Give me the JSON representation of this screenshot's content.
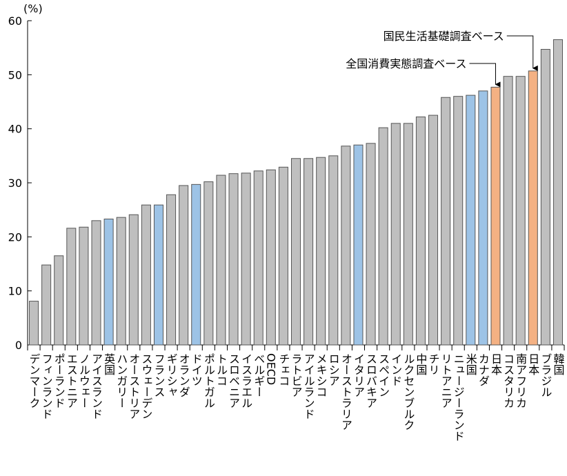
{
  "chart_data": {
    "type": "bar",
    "unit_label": "(%)",
    "categories": [
      "デンマーク",
      "フィンランド",
      "ポーランド",
      "エストニア",
      "ノルウェー",
      "アイスランド",
      "英国",
      "ハンガリー",
      "オーストリア",
      "スウェーデン",
      "フランス",
      "ギリシャ",
      "オランダ",
      "ドイツ",
      "ポルトガル",
      "トルコ",
      "スロベニア",
      "イスラエル",
      "ベルギー",
      "OECD",
      "チェコ",
      "ラトビア",
      "アイルランド",
      "メキシコ",
      "ロシア",
      "オーストラリア",
      "イタリア",
      "スロバキア",
      "スペイン",
      "インド",
      "ルクセンブルク",
      "中国",
      "チリ",
      "リトアニア",
      "ニュージーランド",
      "米国",
      "カナダ",
      "日本",
      "コスタリカ",
      "南アフリカ",
      "日本",
      "ブラジル",
      "韓国"
    ],
    "values": [
      8.1,
      14.8,
      16.5,
      21.6,
      21.8,
      23.0,
      23.3,
      23.6,
      24.1,
      25.9,
      25.9,
      27.8,
      29.5,
      29.7,
      30.2,
      31.4,
      31.7,
      31.8,
      32.2,
      32.4,
      32.9,
      34.5,
      34.5,
      34.7,
      35.0,
      36.8,
      37.0,
      37.3,
      40.2,
      41.0,
      41.0,
      42.2,
      42.5,
      45.8,
      46.0,
      46.2,
      47.0,
      47.7,
      49.7,
      49.7,
      50.7,
      54.7,
      56.5
    ],
    "colors": [
      "#bfbfbf",
      "#bfbfbf",
      "#bfbfbf",
      "#bfbfbf",
      "#bfbfbf",
      "#bfbfbf",
      "#9dc3e6",
      "#bfbfbf",
      "#bfbfbf",
      "#bfbfbf",
      "#9dc3e6",
      "#bfbfbf",
      "#bfbfbf",
      "#9dc3e6",
      "#bfbfbf",
      "#bfbfbf",
      "#bfbfbf",
      "#bfbfbf",
      "#bfbfbf",
      "#bfbfbf",
      "#bfbfbf",
      "#bfbfbf",
      "#bfbfbf",
      "#bfbfbf",
      "#bfbfbf",
      "#bfbfbf",
      "#9dc3e6",
      "#bfbfbf",
      "#bfbfbf",
      "#bfbfbf",
      "#bfbfbf",
      "#bfbfbf",
      "#bfbfbf",
      "#bfbfbf",
      "#bfbfbf",
      "#9dc3e6",
      "#9dc3e6",
      "#f4b183",
      "#bfbfbf",
      "#bfbfbf",
      "#f4b183",
      "#bfbfbf",
      "#bfbfbf"
    ],
    "ylim": [
      0,
      60
    ],
    "yticks": [
      0,
      10,
      20,
      30,
      40,
      50,
      60
    ],
    "grid": false,
    "annotations": [
      {
        "text": "国民生活基礎調査ベース",
        "index": 40
      },
      {
        "text": "全国消費実態調査ベース",
        "index": 37
      }
    ]
  }
}
